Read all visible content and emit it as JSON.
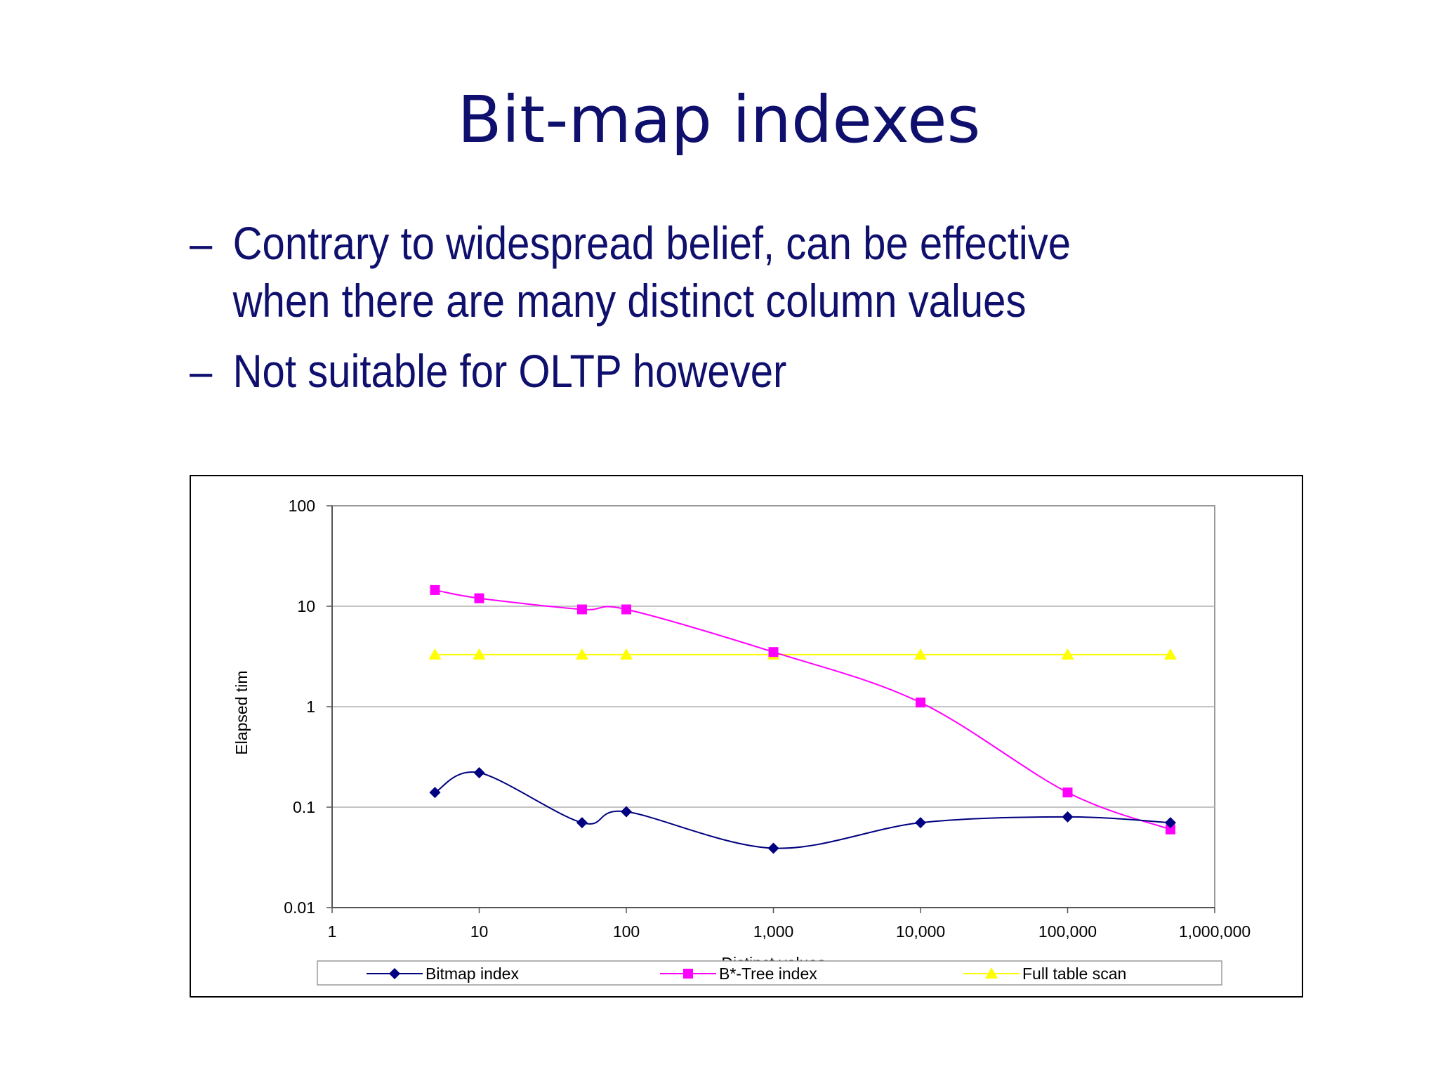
{
  "slide": {
    "title": "Bit-map indexes",
    "bullets": [
      "Contrary to widespread belief, can be effective when there are many distinct column values",
      "Not suitable for OLTP however"
    ],
    "bullet_marker": "–"
  },
  "colors": {
    "title": "#0f0f6e",
    "bitmap": "#000080",
    "btree": "#ff00ff",
    "fullscan": "#ffff00",
    "gridline": "#b0b0b0"
  },
  "chart_data": {
    "type": "line",
    "xscale": "log",
    "yscale": "log",
    "xlabel": "Distinct values",
    "ylabel": "Elapsed tim",
    "xlim": [
      1,
      1000000
    ],
    "ylim": [
      0.01,
      100
    ],
    "x_ticks": [
      {
        "value": 1,
        "label": "1"
      },
      {
        "value": 10,
        "label": "10"
      },
      {
        "value": 100,
        "label": "100"
      },
      {
        "value": 1000,
        "label": "1,000"
      },
      {
        "value": 10000,
        "label": "10,000"
      },
      {
        "value": 100000,
        "label": "100,000"
      },
      {
        "value": 1000000,
        "label": "1,000,000"
      }
    ],
    "y_ticks": [
      {
        "value": 0.01,
        "label": "0.01"
      },
      {
        "value": 0.1,
        "label": "0.1"
      },
      {
        "value": 1,
        "label": "1"
      },
      {
        "value": 10,
        "label": "10"
      },
      {
        "value": 100,
        "label": "100"
      }
    ],
    "grid": "horizontal",
    "legend_position": "bottom",
    "x": [
      5,
      10,
      50,
      100,
      1000,
      10000,
      100000,
      500000
    ],
    "series": [
      {
        "name": "Bitmap index",
        "color": "#000080",
        "marker": "diamond",
        "values": [
          0.14,
          0.22,
          0.07,
          0.09,
          0.039,
          0.07,
          0.08,
          0.07
        ]
      },
      {
        "name": "B*-Tree index",
        "color": "#ff00ff",
        "marker": "square",
        "values": [
          14.5,
          12,
          9.3,
          9.3,
          3.5,
          1.1,
          0.14,
          0.06
        ]
      },
      {
        "name": "Full table scan",
        "color": "#ffff00",
        "marker": "triangle",
        "values": [
          3.3,
          3.3,
          3.3,
          3.3,
          3.3,
          3.3,
          3.3,
          3.3
        ]
      }
    ]
  }
}
